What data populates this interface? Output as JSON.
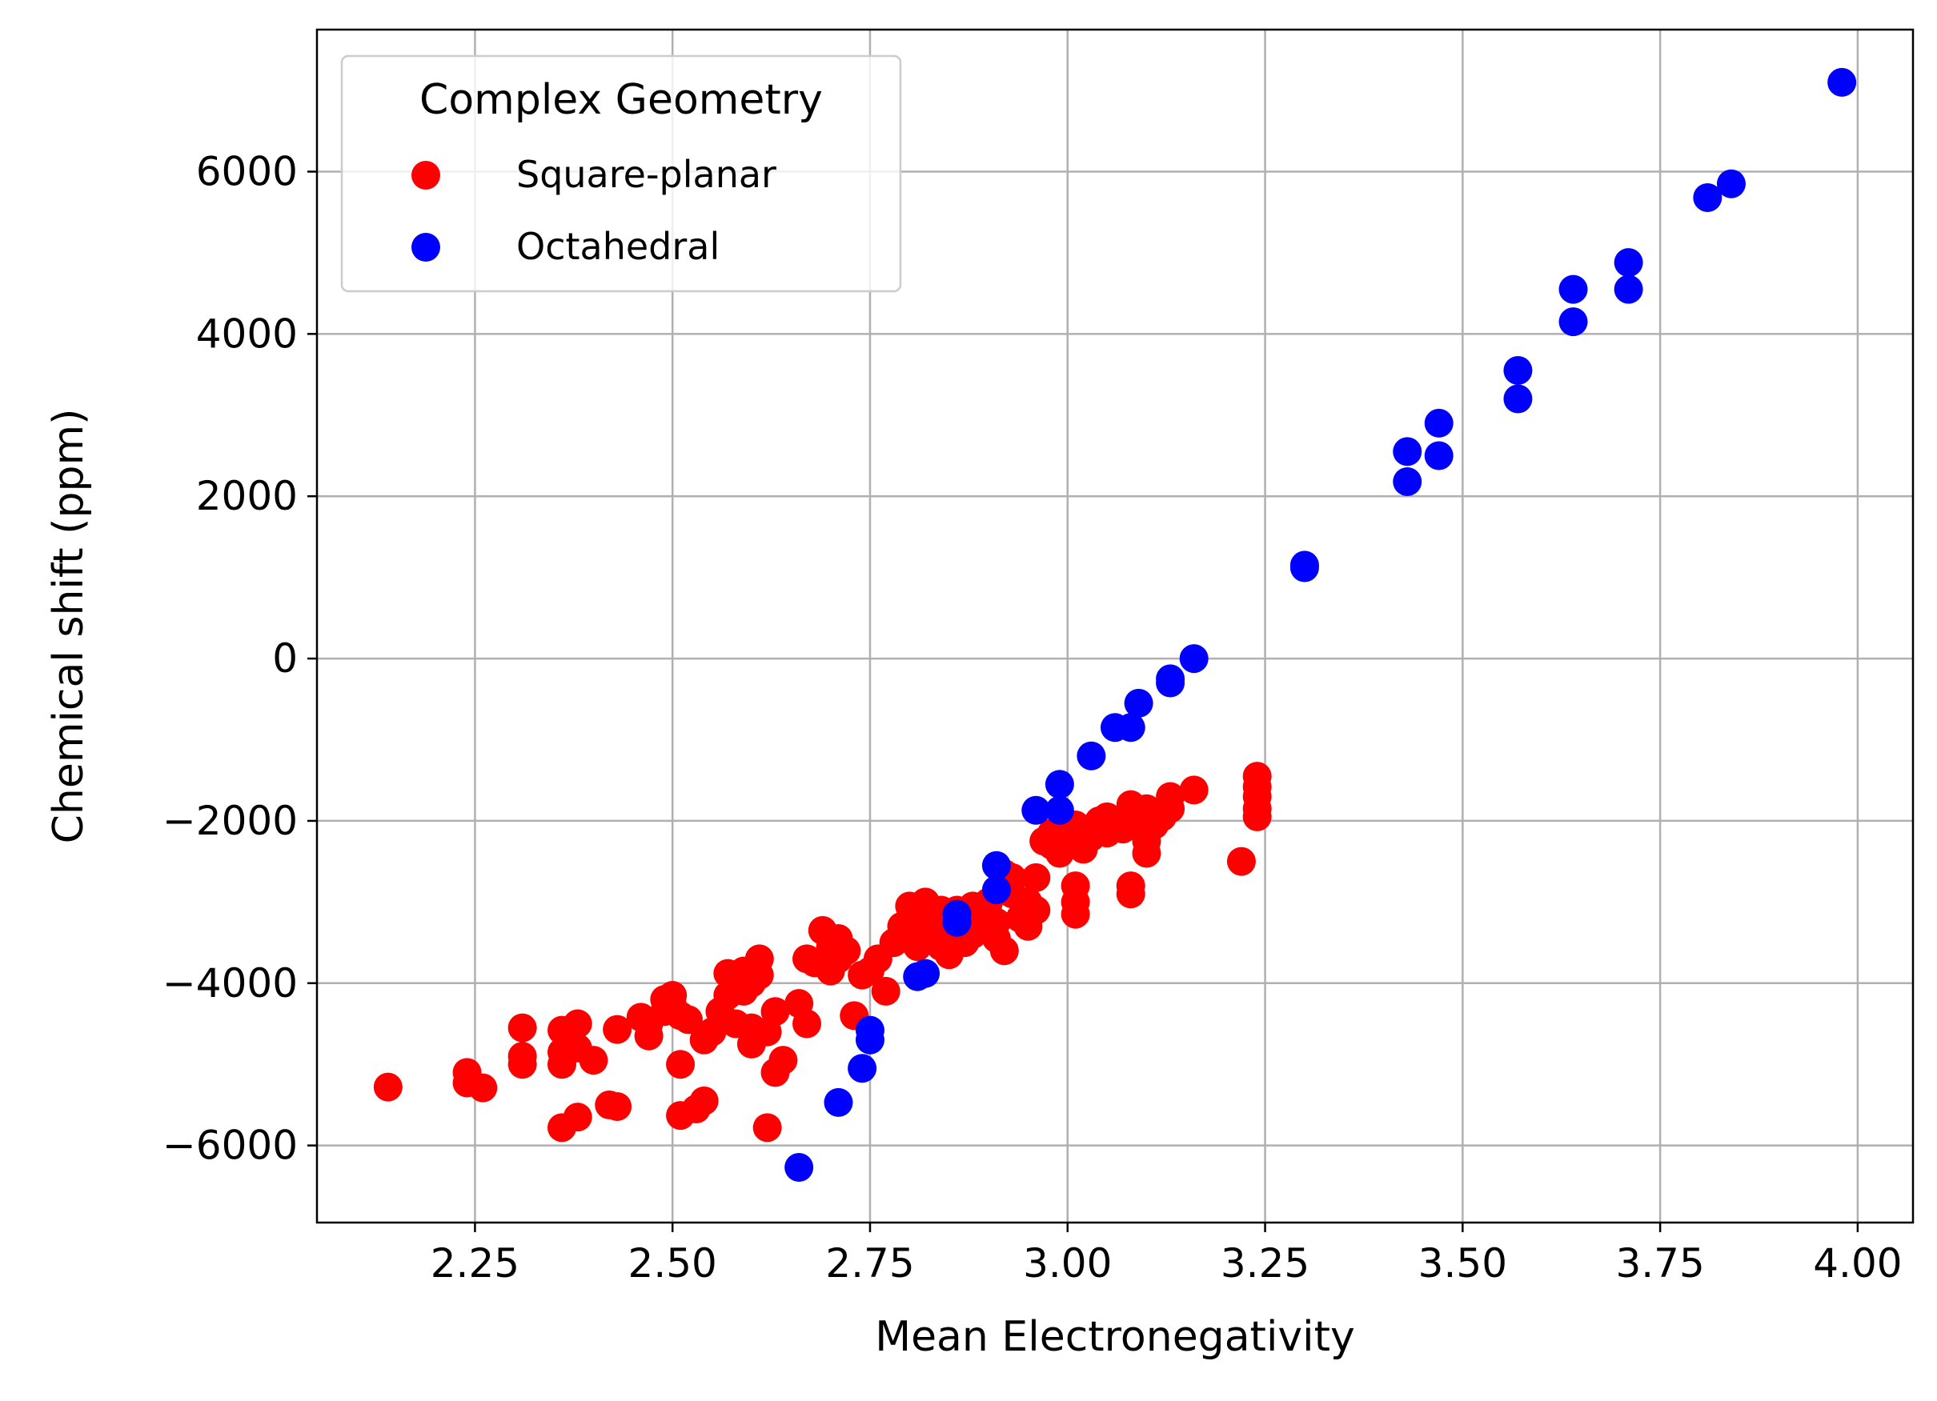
{
  "chart_data": {
    "type": "scatter",
    "title": "",
    "xlabel": "Mean Electronegativity",
    "ylabel": "Chemical shift (ppm)",
    "xlim": [
      2.05,
      4.07
    ],
    "ylim": [
      -6950,
      7750
    ],
    "grid": true,
    "xticks": [
      2.25,
      2.5,
      2.75,
      3.0,
      3.25,
      3.5,
      3.75,
      4.0
    ],
    "xtick_labels": [
      "2.25",
      "2.50",
      "2.75",
      "3.00",
      "3.25",
      "3.50",
      "3.75",
      "4.00"
    ],
    "yticks": [
      -6000,
      -4000,
      -2000,
      0,
      2000,
      4000,
      6000
    ],
    "ytick_labels": [
      "−6000",
      "−4000",
      "−2000",
      "0",
      "2000",
      "4000",
      "6000"
    ],
    "legend": {
      "title": "Complex Geometry",
      "position": "top-left"
    },
    "series": [
      {
        "name": "Square-planar",
        "color": "#ff0000",
        "points": [
          [
            2.14,
            -5280
          ],
          [
            2.24,
            -5100
          ],
          [
            2.24,
            -5230
          ],
          [
            2.26,
            -5290
          ],
          [
            2.31,
            -4550
          ],
          [
            2.31,
            -4900
          ],
          [
            2.31,
            -5000
          ],
          [
            2.36,
            -4580
          ],
          [
            2.36,
            -4850
          ],
          [
            2.36,
            -5000
          ],
          [
            2.36,
            -5780
          ],
          [
            2.38,
            -4500
          ],
          [
            2.38,
            -4800
          ],
          [
            2.38,
            -5650
          ],
          [
            2.4,
            -4950
          ],
          [
            2.42,
            -5500
          ],
          [
            2.43,
            -4570
          ],
          [
            2.43,
            -5520
          ],
          [
            2.46,
            -4420
          ],
          [
            2.47,
            -4500
          ],
          [
            2.47,
            -4650
          ],
          [
            2.49,
            -4200
          ],
          [
            2.49,
            -4350
          ],
          [
            2.5,
            -4280
          ],
          [
            2.5,
            -4150
          ],
          [
            2.51,
            -4400
          ],
          [
            2.51,
            -5000
          ],
          [
            2.51,
            -5630
          ],
          [
            2.52,
            -4450
          ],
          [
            2.53,
            -5550
          ],
          [
            2.54,
            -4700
          ],
          [
            2.54,
            -5450
          ],
          [
            2.55,
            -4600
          ],
          [
            2.56,
            -4350
          ],
          [
            2.57,
            -4150
          ],
          [
            2.57,
            -3880
          ],
          [
            2.58,
            -4500
          ],
          [
            2.59,
            -4100
          ],
          [
            2.59,
            -3850
          ],
          [
            2.6,
            -4750
          ],
          [
            2.6,
            -4550
          ],
          [
            2.6,
            -4000
          ],
          [
            2.61,
            -3700
          ],
          [
            2.61,
            -3900
          ],
          [
            2.62,
            -5780
          ],
          [
            2.62,
            -4600
          ],
          [
            2.63,
            -4350
          ],
          [
            2.63,
            -5100
          ],
          [
            2.64,
            -4950
          ],
          [
            2.66,
            -4250
          ],
          [
            2.67,
            -4500
          ],
          [
            2.67,
            -3700
          ],
          [
            2.68,
            -3750
          ],
          [
            2.69,
            -3350
          ],
          [
            2.7,
            -3550
          ],
          [
            2.7,
            -3850
          ],
          [
            2.71,
            -3450
          ],
          [
            2.71,
            -3700
          ],
          [
            2.72,
            -3600
          ],
          [
            2.73,
            -4400
          ],
          [
            2.74,
            -3900
          ],
          [
            2.75,
            -3850
          ],
          [
            2.76,
            -3700
          ],
          [
            2.77,
            -4100
          ],
          [
            2.78,
            -3500
          ],
          [
            2.79,
            -3300
          ],
          [
            2.8,
            -3250
          ],
          [
            2.8,
            -3050
          ],
          [
            2.81,
            -3150
          ],
          [
            2.81,
            -3550
          ],
          [
            2.82,
            -3000
          ],
          [
            2.82,
            -3450
          ],
          [
            2.83,
            -3300
          ],
          [
            2.84,
            -3550
          ],
          [
            2.84,
            -3100
          ],
          [
            2.85,
            -3250
          ],
          [
            2.85,
            -3650
          ],
          [
            2.86,
            -3400
          ],
          [
            2.86,
            -3100
          ],
          [
            2.87,
            -3500
          ],
          [
            2.87,
            -3200
          ],
          [
            2.88,
            -3050
          ],
          [
            2.88,
            -3400
          ],
          [
            2.89,
            -3300
          ],
          [
            2.9,
            -3150
          ],
          [
            2.9,
            -3000
          ],
          [
            2.91,
            -3250
          ],
          [
            2.91,
            -3450
          ],
          [
            2.92,
            -3600
          ],
          [
            2.92,
            -2650
          ],
          [
            2.93,
            -2900
          ],
          [
            2.93,
            -2700
          ],
          [
            2.94,
            -3200
          ],
          [
            2.95,
            -3000
          ],
          [
            2.95,
            -3300
          ],
          [
            2.96,
            -3100
          ],
          [
            2.96,
            -2700
          ],
          [
            2.97,
            -2250
          ],
          [
            2.98,
            -2300
          ],
          [
            2.98,
            -2150
          ],
          [
            2.99,
            -2400
          ],
          [
            3.0,
            -2200
          ],
          [
            3.01,
            -2050
          ],
          [
            3.01,
            -2800
          ],
          [
            3.01,
            -3000
          ],
          [
            3.01,
            -3150
          ],
          [
            3.02,
            -2350
          ],
          [
            3.02,
            -2100
          ],
          [
            3.03,
            -2200
          ],
          [
            3.04,
            -2000
          ],
          [
            3.05,
            -2150
          ],
          [
            3.05,
            -1950
          ],
          [
            3.06,
            -2050
          ],
          [
            3.07,
            -2100
          ],
          [
            3.08,
            -1800
          ],
          [
            3.08,
            -2050
          ],
          [
            3.08,
            -2800
          ],
          [
            3.08,
            -2900
          ],
          [
            3.09,
            -2000
          ],
          [
            3.1,
            -1850
          ],
          [
            3.1,
            -2250
          ],
          [
            3.1,
            -2400
          ],
          [
            3.11,
            -2050
          ],
          [
            3.12,
            -1950
          ],
          [
            3.13,
            -1700
          ],
          [
            3.13,
            -1850
          ],
          [
            3.16,
            -1620
          ],
          [
            3.22,
            -2500
          ],
          [
            3.24,
            -1450
          ],
          [
            3.24,
            -1580
          ],
          [
            3.24,
            -1700
          ],
          [
            3.24,
            -1850
          ],
          [
            3.24,
            -1950
          ]
        ]
      },
      {
        "name": "Octahedral",
        "color": "#0000ff",
        "points": [
          [
            2.66,
            -6270
          ],
          [
            2.71,
            -5470
          ],
          [
            2.74,
            -5050
          ],
          [
            2.75,
            -4700
          ],
          [
            2.75,
            -4580
          ],
          [
            2.81,
            -3920
          ],
          [
            2.82,
            -3880
          ],
          [
            2.86,
            -3250
          ],
          [
            2.86,
            -3150
          ],
          [
            2.91,
            -2850
          ],
          [
            2.91,
            -2550
          ],
          [
            2.96,
            -1870
          ],
          [
            2.99,
            -1870
          ],
          [
            2.99,
            -1550
          ],
          [
            3.03,
            -1200
          ],
          [
            3.06,
            -850
          ],
          [
            3.08,
            -850
          ],
          [
            3.09,
            -550
          ],
          [
            3.13,
            -300
          ],
          [
            3.13,
            -250
          ],
          [
            3.16,
            0
          ],
          [
            3.3,
            1120
          ],
          [
            3.3,
            1150
          ],
          [
            3.43,
            2180
          ],
          [
            3.43,
            2550
          ],
          [
            3.47,
            2500
          ],
          [
            3.47,
            2900
          ],
          [
            3.57,
            3200
          ],
          [
            3.57,
            3550
          ],
          [
            3.64,
            4150
          ],
          [
            3.64,
            4550
          ],
          [
            3.71,
            4550
          ],
          [
            3.71,
            4880
          ],
          [
            3.81,
            5680
          ],
          [
            3.84,
            5850
          ],
          [
            3.98,
            7100
          ]
        ]
      }
    ]
  }
}
